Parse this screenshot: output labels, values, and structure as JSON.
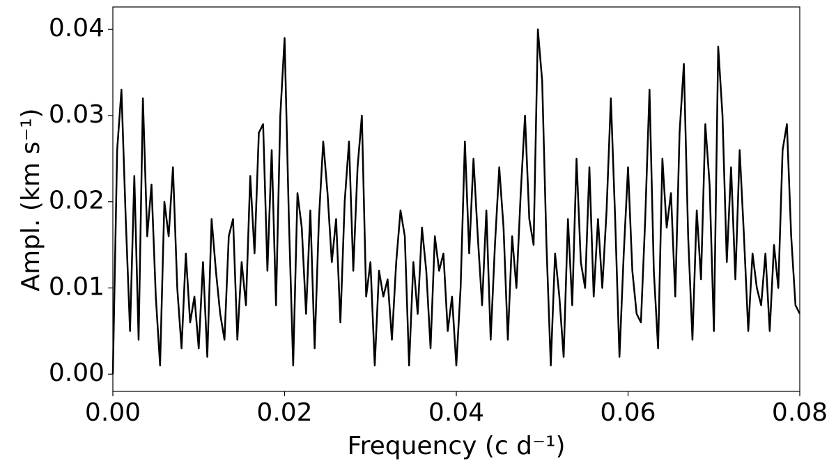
{
  "chart_data": {
    "type": "line",
    "xlabel": "Frequency (c d⁻¹)",
    "ylabel": "Ampl. (km s⁻¹)",
    "xlim": [
      0,
      0.08
    ],
    "ylim": [
      -0.002,
      0.0426
    ],
    "xticks": [
      {
        "value": 0,
        "label": "0.00"
      },
      {
        "value": 0.02,
        "label": "0.02"
      },
      {
        "value": 0.04,
        "label": "0.04"
      },
      {
        "value": 0.06,
        "label": "0.06"
      },
      {
        "value": 0.08,
        "label": "0.08"
      }
    ],
    "yticks": [
      {
        "value": 0,
        "label": "0.00"
      },
      {
        "value": 0.01,
        "label": "0.01"
      },
      {
        "value": 0.02,
        "label": "0.02"
      },
      {
        "value": 0.03,
        "label": "0.03"
      },
      {
        "value": 0.04,
        "label": "0.04"
      }
    ],
    "x": [
      0,
      0.0005,
      0.001,
      0.0015,
      0.002,
      0.0025,
      0.003,
      0.0035,
      0.004,
      0.0045,
      0.005,
      0.0055,
      0.006,
      0.0065,
      0.007,
      0.0075,
      0.008,
      0.0085,
      0.009,
      0.0095,
      0.01,
      0.0105,
      0.011,
      0.0115,
      0.012,
      0.0125,
      0.013,
      0.0135,
      0.014,
      0.0145,
      0.015,
      0.0155,
      0.016,
      0.0165,
      0.017,
      0.0175,
      0.018,
      0.0185,
      0.019,
      0.0195,
      0.02,
      0.0205,
      0.021,
      0.0215,
      0.022,
      0.0225,
      0.023,
      0.0235,
      0.024,
      0.0245,
      0.025,
      0.0255,
      0.026,
      0.0265,
      0.027,
      0.0275,
      0.028,
      0.0285,
      0.029,
      0.0295,
      0.03,
      0.0305,
      0.031,
      0.0315,
      0.032,
      0.0325,
      0.033,
      0.0335,
      0.034,
      0.0345,
      0.035,
      0.0355,
      0.036,
      0.0365,
      0.037,
      0.0375,
      0.038,
      0.0385,
      0.039,
      0.0395,
      0.04,
      0.0405,
      0.041,
      0.0415,
      0.042,
      0.0425,
      0.043,
      0.0435,
      0.044,
      0.0445,
      0.045,
      0.0455,
      0.046,
      0.0465,
      0.047,
      0.0475,
      0.048,
      0.0485,
      0.049,
      0.0495,
      0.05,
      0.0505,
      0.051,
      0.0515,
      0.052,
      0.0525,
      0.053,
      0.0535,
      0.054,
      0.0545,
      0.055,
      0.0555,
      0.056,
      0.0565,
      0.057,
      0.0575,
      0.058,
      0.0585,
      0.059,
      0.0595,
      0.06,
      0.0605,
      0.061,
      0.0615,
      0.062,
      0.0625,
      0.063,
      0.0635,
      0.064,
      0.0645,
      0.065,
      0.0655,
      0.066,
      0.0665,
      0.067,
      0.0675,
      0.068,
      0.0685,
      0.069,
      0.0695,
      0.07,
      0.0705,
      0.071,
      0.0715,
      0.072,
      0.0725,
      0.073,
      0.0735,
      0.074,
      0.0745,
      0.075,
      0.0755,
      0.076,
      0.0765,
      0.077,
      0.0775,
      0.078,
      0.0785,
      0.079,
      0.0795,
      0.08
    ],
    "series": [
      {
        "color": "#000000",
        "values": [
          0.0,
          0.026,
          0.033,
          0.018,
          0.005,
          0.023,
          0.004,
          0.032,
          0.016,
          0.022,
          0.009,
          0.001,
          0.02,
          0.016,
          0.024,
          0.01,
          0.003,
          0.014,
          0.006,
          0.009,
          0.003,
          0.013,
          0.002,
          0.018,
          0.012,
          0.007,
          0.004,
          0.016,
          0.018,
          0.004,
          0.013,
          0.008,
          0.023,
          0.014,
          0.028,
          0.029,
          0.012,
          0.026,
          0.008,
          0.03,
          0.039,
          0.018,
          0.001,
          0.021,
          0.017,
          0.007,
          0.019,
          0.003,
          0.018,
          0.027,
          0.021,
          0.013,
          0.018,
          0.006,
          0.02,
          0.027,
          0.012,
          0.024,
          0.03,
          0.009,
          0.013,
          0.001,
          0.012,
          0.009,
          0.011,
          0.004,
          0.013,
          0.019,
          0.016,
          0.001,
          0.013,
          0.007,
          0.017,
          0.012,
          0.003,
          0.016,
          0.012,
          0.014,
          0.005,
          0.009,
          0.001,
          0.01,
          0.027,
          0.014,
          0.025,
          0.016,
          0.008,
          0.019,
          0.004,
          0.015,
          0.024,
          0.017,
          0.004,
          0.016,
          0.01,
          0.021,
          0.03,
          0.018,
          0.015,
          0.04,
          0.034,
          0.015,
          0.001,
          0.014,
          0.009,
          0.002,
          0.018,
          0.008,
          0.025,
          0.013,
          0.01,
          0.024,
          0.009,
          0.018,
          0.01,
          0.019,
          0.032,
          0.018,
          0.002,
          0.014,
          0.024,
          0.012,
          0.007,
          0.006,
          0.018,
          0.033,
          0.012,
          0.003,
          0.025,
          0.017,
          0.021,
          0.009,
          0.028,
          0.036,
          0.016,
          0.004,
          0.019,
          0.011,
          0.029,
          0.022,
          0.005,
          0.038,
          0.03,
          0.013,
          0.024,
          0.011,
          0.026,
          0.016,
          0.005,
          0.014,
          0.01,
          0.008,
          0.014,
          0.005,
          0.015,
          0.01,
          0.026,
          0.029,
          0.016,
          0.008,
          0.007
        ]
      }
    ]
  }
}
